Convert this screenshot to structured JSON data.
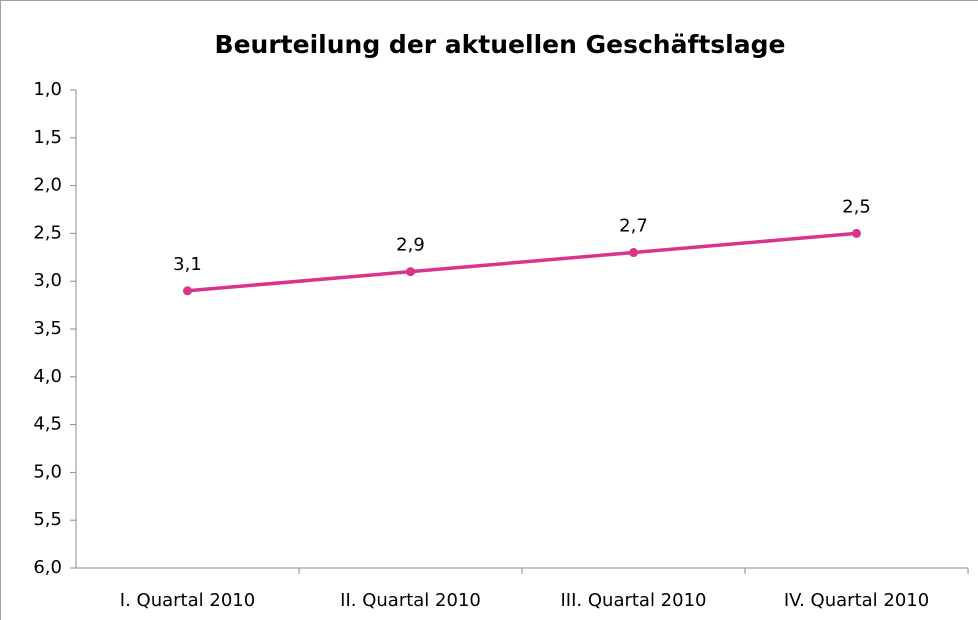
{
  "chart_data": {
    "type": "line",
    "title": "Beurteilung der aktuellen Geschäftslage",
    "categories": [
      "I. Quartal 2010",
      "II. Quartal 2010",
      "III. Quartal 2010",
      "IV. Quartal 2010"
    ],
    "series": [
      {
        "name": "Beurteilung der aktuellen Geschäftslage",
        "color": "#d9348c",
        "values": [
          3.1,
          2.9,
          2.7,
          2.5
        ],
        "value_labels": [
          "3,1",
          "2,9",
          "2,7",
          "2,5"
        ]
      }
    ],
    "ylim": [
      6.0,
      1.0
    ],
    "yticks": [
      {
        "value": 1.0,
        "label": "1,0"
      },
      {
        "value": 1.5,
        "label": "1,5"
      },
      {
        "value": 2.0,
        "label": "2,0"
      },
      {
        "value": 2.5,
        "label": "2,5"
      },
      {
        "value": 3.0,
        "label": "3,0"
      },
      {
        "value": 3.5,
        "label": "3,5"
      },
      {
        "value": 4.0,
        "label": "4,0"
      },
      {
        "value": 4.5,
        "label": "4,5"
      },
      {
        "value": 5.0,
        "label": "5,0"
      },
      {
        "value": 5.5,
        "label": "5,5"
      },
      {
        "value": 6.0,
        "label": "6,0"
      }
    ],
    "grid": false
  }
}
